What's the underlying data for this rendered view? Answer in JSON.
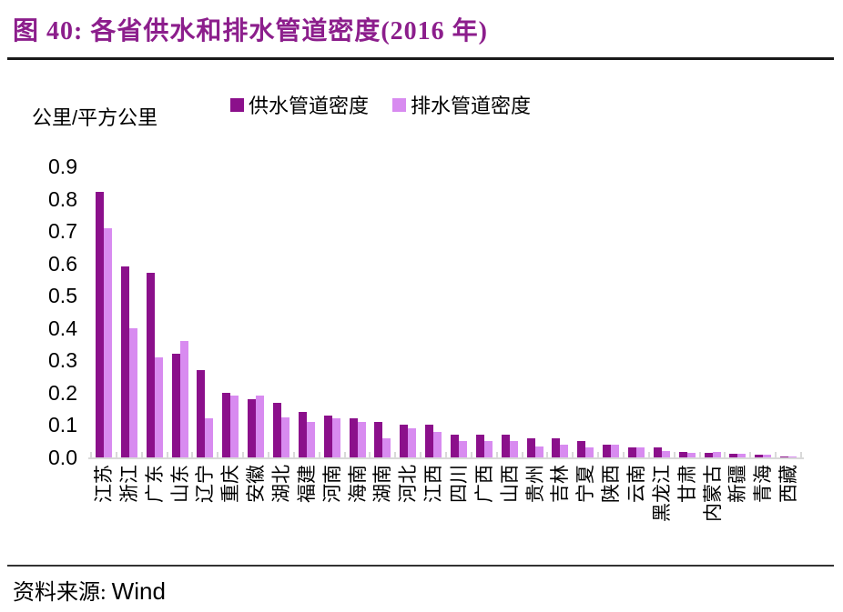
{
  "header": {
    "title": "图 40: 各省供水和排水管道密度(2016 年)"
  },
  "footer": {
    "source_label": "资料来源: ",
    "source_value": "Wind"
  },
  "chart_data": {
    "type": "bar",
    "title": "各省供水和排水管道密度(2016 年)",
    "unit_label": "公里/平方公里",
    "xlabel": "",
    "ylabel": "公里/平方公里",
    "ylim": [
      0,
      0.9
    ],
    "yticks": [
      0.0,
      0.1,
      0.2,
      0.3,
      0.4,
      0.5,
      0.6,
      0.7,
      0.8,
      0.9
    ],
    "grid": false,
    "legend_position": "top",
    "categories": [
      "江苏",
      "浙江",
      "广东",
      "山东",
      "辽宁",
      "重庆",
      "安徽",
      "湖北",
      "福建",
      "河南",
      "海南",
      "湖南",
      "河北",
      "江西",
      "四川",
      "广西",
      "山西",
      "贵州",
      "吉林",
      "宁夏",
      "陕西",
      "云南",
      "黑龙江",
      "甘肃",
      "内蒙古",
      "新疆",
      "青海",
      "西藏"
    ],
    "series": [
      {
        "name": "供水管道密度",
        "color": "#8B108B",
        "values": [
          0.82,
          0.59,
          0.57,
          0.32,
          0.27,
          0.2,
          0.18,
          0.17,
          0.14,
          0.13,
          0.12,
          0.11,
          0.1,
          0.1,
          0.07,
          0.07,
          0.07,
          0.06,
          0.06,
          0.05,
          0.04,
          0.03,
          0.03,
          0.018,
          0.015,
          0.01,
          0.008,
          0.004
        ]
      },
      {
        "name": "排水管道密度",
        "color": "#D88BF0",
        "values": [
          0.71,
          0.4,
          0.31,
          0.36,
          0.12,
          0.19,
          0.19,
          0.125,
          0.11,
          0.12,
          0.11,
          0.06,
          0.09,
          0.08,
          0.05,
          0.05,
          0.05,
          0.035,
          0.04,
          0.03,
          0.04,
          0.03,
          0.02,
          0.015,
          0.018,
          0.01,
          0.008,
          0.004
        ]
      }
    ],
    "colors": {
      "title_accent": "#8C1E8C",
      "axis_gray": "#D9D9D9",
      "text": "#000000"
    }
  }
}
